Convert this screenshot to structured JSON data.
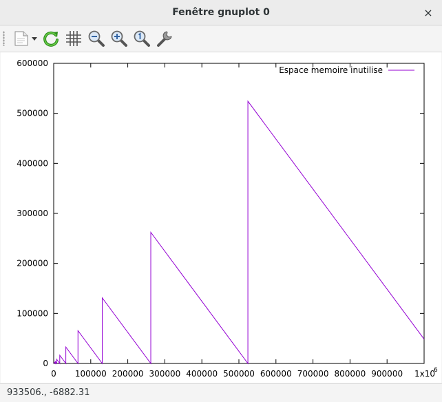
{
  "window": {
    "title": "Fenêtre gnuplot 0",
    "close_glyph": "×"
  },
  "toolbar": {
    "buttons": [
      {
        "name": "export-button",
        "icon": "document-export-icon"
      },
      {
        "name": "replot-button",
        "icon": "refresh-icon"
      },
      {
        "name": "grid-toggle-button",
        "icon": "grid-icon"
      },
      {
        "name": "zoom-out-button",
        "icon": "zoom-out-icon"
      },
      {
        "name": "zoom-in-button",
        "icon": "zoom-in-icon"
      },
      {
        "name": "zoom-reset-button",
        "icon": "zoom-original-icon"
      },
      {
        "name": "settings-button",
        "icon": "wrench-icon"
      }
    ]
  },
  "chart_data": {
    "type": "line",
    "title": "",
    "xlabel": "",
    "ylabel": "",
    "xlim": [
      0,
      1000000
    ],
    "ylim": [
      0,
      600000
    ],
    "x_ticks": [
      {
        "value": 0,
        "label": "0"
      },
      {
        "value": 100000,
        "label": "100000"
      },
      {
        "value": 200000,
        "label": "200000"
      },
      {
        "value": 300000,
        "label": "300000"
      },
      {
        "value": 400000,
        "label": "400000"
      },
      {
        "value": 500000,
        "label": "500000"
      },
      {
        "value": 600000,
        "label": "600000"
      },
      {
        "value": 700000,
        "label": "700000"
      },
      {
        "value": 800000,
        "label": "800000"
      },
      {
        "value": 900000,
        "label": "900000"
      },
      {
        "value": 1000000,
        "label": "1x10",
        "superscript": "6"
      }
    ],
    "y_ticks": [
      {
        "value": 0,
        "label": "0"
      },
      {
        "value": 100000,
        "label": "100000"
      },
      {
        "value": 200000,
        "label": "200000"
      },
      {
        "value": 300000,
        "label": "300000"
      },
      {
        "value": 400000,
        "label": "400000"
      },
      {
        "value": 500000,
        "label": "500000"
      },
      {
        "value": 600000,
        "label": "600000"
      }
    ],
    "grid": false,
    "legend": "top-right",
    "series": [
      {
        "name": "Espace memoire inutilise",
        "color": "#9400d3",
        "points": [
          [
            0,
            0
          ],
          [
            2048,
            2048
          ],
          [
            4096,
            0
          ],
          [
            4096,
            4096
          ],
          [
            8192,
            0
          ],
          [
            8192,
            8192
          ],
          [
            16384,
            0
          ],
          [
            16384,
            16384
          ],
          [
            32768,
            0
          ],
          [
            32768,
            32768
          ],
          [
            65536,
            0
          ],
          [
            65536,
            65536
          ],
          [
            131072,
            0
          ],
          [
            131072,
            131072
          ],
          [
            262144,
            0
          ],
          [
            262144,
            262144
          ],
          [
            524288,
            0
          ],
          [
            524288,
            524288
          ],
          [
            1000000,
            48576
          ]
        ]
      }
    ]
  },
  "statusbar": {
    "coordinates": "933506., -6882.31"
  }
}
